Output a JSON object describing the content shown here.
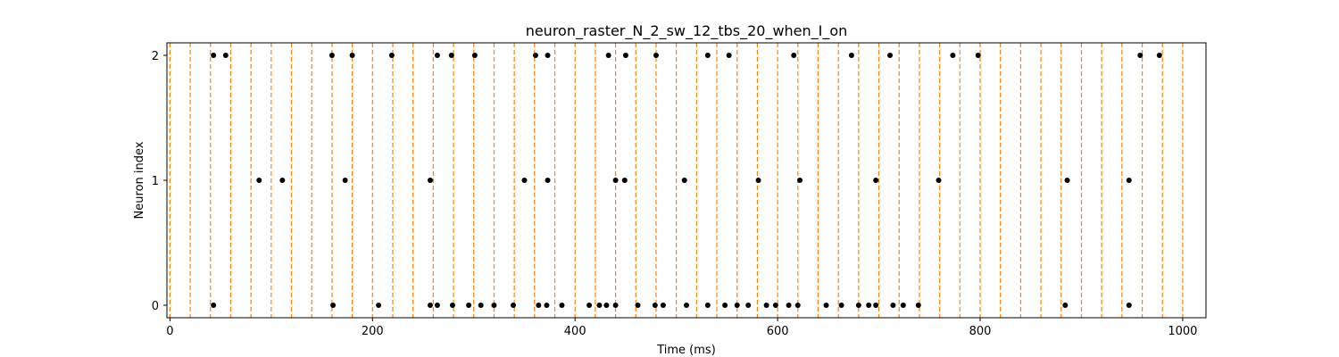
{
  "chart_data": {
    "type": "scatter",
    "title": "neuron_raster_N_2_sw_12_tbs_20_when_I_on",
    "xlabel": "Time (ms)",
    "ylabel": "Neuron index",
    "xlim": [
      -3,
      1023
    ],
    "ylim": [
      -0.1,
      2.1
    ],
    "xticks": [
      0,
      200,
      400,
      600,
      800,
      1000
    ],
    "yticks": [
      0,
      1,
      2
    ],
    "xtick_labels": [
      "0",
      "200",
      "400",
      "600",
      "800",
      "1000"
    ],
    "ytick_labels": [
      "0",
      "1",
      "2"
    ],
    "grid": false,
    "marker_color": "#000000",
    "vline_color": "#ff7f0e",
    "vline_style": "dashed",
    "vlines_x": [
      0,
      20,
      40,
      60,
      80,
      100,
      120,
      140,
      160,
      180,
      200,
      220,
      240,
      260,
      280,
      300,
      320,
      340,
      360,
      380,
      400,
      420,
      440,
      460,
      480,
      500,
      520,
      540,
      560,
      580,
      600,
      620,
      640,
      660,
      680,
      700,
      720,
      740,
      760,
      780,
      800,
      820,
      840,
      860,
      880,
      900,
      920,
      940,
      960,
      980,
      1000
    ],
    "series": [
      {
        "neuron": 2,
        "times": [
          43,
          55,
          160,
          180,
          219,
          264,
          278,
          301,
          361,
          373,
          433,
          450,
          480,
          531,
          552,
          616,
          673,
          711,
          773,
          798,
          958,
          977
        ]
      },
      {
        "neuron": 1,
        "times": [
          88,
          111,
          173,
          257,
          350,
          373,
          440,
          449,
          508,
          581,
          622,
          697,
          759,
          886,
          947
        ]
      },
      {
        "neuron": 0,
        "times": [
          43,
          161,
          206,
          257,
          264,
          279,
          295,
          307,
          320,
          339,
          364,
          372,
          387,
          414,
          424,
          431,
          440,
          462,
          479,
          487,
          510,
          531,
          548,
          560,
          571,
          589,
          598,
          611,
          620,
          648,
          663,
          680,
          690,
          697,
          714,
          724,
          739,
          884,
          947
        ]
      }
    ]
  }
}
